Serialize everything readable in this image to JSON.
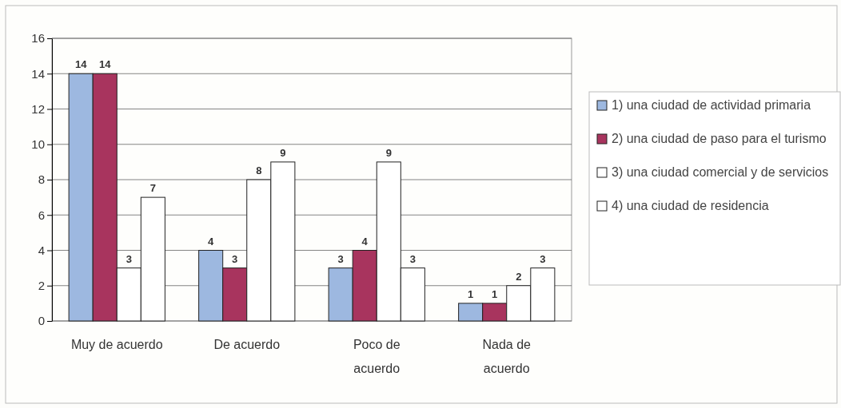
{
  "chart_data": {
    "type": "bar",
    "categories": [
      "Muy de acuerdo",
      "De acuerdo",
      "Poco de\nacuerdo",
      "Nada de\nacuerdo"
    ],
    "series": [
      {
        "name": "1) una ciudad de actividad primaria",
        "color": "#9db8e0",
        "values": [
          14,
          4,
          3,
          1
        ]
      },
      {
        "name": "2) una ciudad de paso para el turismo",
        "color": "#a8345e",
        "values": [
          14,
          3,
          4,
          1
        ]
      },
      {
        "name": "3) una ciudad comercial y de servicios",
        "color": "#ffffff",
        "values": [
          3,
          8,
          9,
          2
        ]
      },
      {
        "name": "4) una ciudad de residencia",
        "color": "#ffffff",
        "values": [
          7,
          9,
          3,
          3
        ]
      }
    ],
    "ylim": [
      0,
      16
    ],
    "yticks": [
      0,
      2,
      4,
      6,
      8,
      10,
      12,
      14,
      16
    ],
    "grid": "y",
    "legend": "right",
    "data_labels": true
  }
}
